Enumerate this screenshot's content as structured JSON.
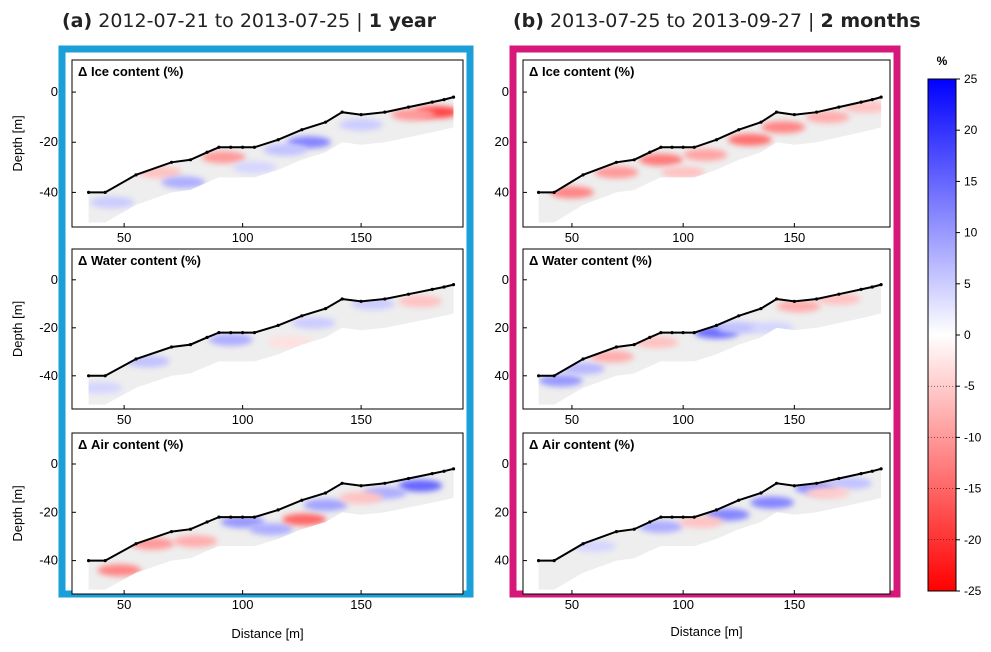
{
  "colors": {
    "frame_a": "#1a9fd9",
    "frame_b": "#d6187a",
    "surface": "#000000",
    "soil_background": "#eeeeee",
    "positive": "#0000ff",
    "negative": "#ff0000",
    "neutral": "#ffffff"
  },
  "chart_data": [
    {
      "type": "heatmap",
      "column": "a",
      "title_prefix": "(a)",
      "title_dates": "2012-07-21 to 2013-07-25 |",
      "title_duration": "1 year",
      "xlabel": "Distance [m]",
      "ylabel": "Depth [m]",
      "xlim": [
        28,
        193
      ],
      "ylim": [
        -53,
        12
      ],
      "x_ticks": [
        50,
        100,
        150
      ],
      "x_tick_labels": [
        "50",
        "100",
        "150"
      ],
      "y_ticks": [
        0,
        -20,
        -40
      ],
      "y_tick_labels": [
        "0",
        "-20",
        "-40"
      ],
      "surface_profile": {
        "x": [
          35,
          42,
          55,
          70,
          78,
          85,
          90,
          95,
          100,
          105,
          115,
          125,
          135,
          142,
          150,
          160,
          170,
          180,
          185,
          189
        ],
        "depth": [
          -40,
          -40,
          -33,
          -28,
          -27,
          -24,
          -22,
          -22,
          -22,
          -22,
          -19,
          -15,
          -12,
          -8,
          -9,
          -8,
          -6,
          -4,
          -3,
          -2
        ]
      },
      "subplots": [
        {
          "label": "Δ Ice content (%)",
          "anomalies": [
            {
              "x": 92,
              "depth": -26,
              "value": -10
            },
            {
              "x": 65,
              "depth": -32,
              "value": -6
            },
            {
              "x": 182,
              "depth": -8,
              "value": -18
            },
            {
              "x": 172,
              "depth": -9,
              "value": -10
            },
            {
              "x": 128,
              "depth": -20,
              "value": 12
            },
            {
              "x": 118,
              "depth": -23,
              "value": 6
            },
            {
              "x": 75,
              "depth": -36,
              "value": 8
            },
            {
              "x": 45,
              "depth": -44,
              "value": 5
            },
            {
              "x": 150,
              "depth": -13,
              "value": 5
            },
            {
              "x": 105,
              "depth": -30,
              "value": 4
            }
          ]
        },
        {
          "label": "Δ Water content (%)",
          "anomalies": [
            {
              "x": 60,
              "depth": -34,
              "value": 6
            },
            {
              "x": 95,
              "depth": -25,
              "value": 8
            },
            {
              "x": 130,
              "depth": -18,
              "value": 5
            },
            {
              "x": 120,
              "depth": -26,
              "value": -3
            },
            {
              "x": 155,
              "depth": -10,
              "value": 5
            },
            {
              "x": 175,
              "depth": -9,
              "value": -6
            },
            {
              "x": 40,
              "depth": -45,
              "value": 4
            }
          ]
        },
        {
          "label": "Δ Air content (%)",
          "anomalies": [
            {
              "x": 100,
              "depth": -24,
              "value": 10
            },
            {
              "x": 112,
              "depth": -27,
              "value": 8
            },
            {
              "x": 126,
              "depth": -23,
              "value": -15
            },
            {
              "x": 135,
              "depth": -17,
              "value": 9
            },
            {
              "x": 62,
              "depth": -33,
              "value": -10
            },
            {
              "x": 48,
              "depth": -44,
              "value": -12
            },
            {
              "x": 80,
              "depth": -32,
              "value": -8
            },
            {
              "x": 175,
              "depth": -9,
              "value": 15
            },
            {
              "x": 160,
              "depth": -12,
              "value": 8
            },
            {
              "x": 150,
              "depth": -14,
              "value": -6
            }
          ]
        }
      ]
    },
    {
      "type": "heatmap",
      "column": "b",
      "title_prefix": "(b)",
      "title_dates": "2013-07-25 to 2013-09-27 |",
      "title_duration": "2 months",
      "xlabel": "Distance [m]",
      "ylabel": "",
      "xlim": [
        28,
        193
      ],
      "ylim": [
        -53,
        12
      ],
      "x_ticks": [
        50,
        100,
        150
      ],
      "x_tick_labels": [
        "50",
        "100",
        "150"
      ],
      "y_ticks": [
        0,
        -20,
        -40
      ],
      "y_tick_labels": [
        "0",
        "20",
        "40"
      ],
      "surface_profile": {
        "x": [
          35,
          42,
          55,
          70,
          78,
          85,
          90,
          95,
          100,
          105,
          115,
          125,
          135,
          142,
          150,
          160,
          170,
          180,
          185,
          189
        ],
        "depth": [
          -40,
          -40,
          -33,
          -28,
          -27,
          -24,
          -22,
          -22,
          -22,
          -22,
          -19,
          -15,
          -12,
          -8,
          -9,
          -8,
          -6,
          -4,
          -3,
          -2
        ]
      },
      "subplots": [
        {
          "label": "Δ Ice content (%)",
          "anomalies": [
            {
              "x": 50,
              "depth": -40,
              "value": -12
            },
            {
              "x": 70,
              "depth": -32,
              "value": -10
            },
            {
              "x": 90,
              "depth": -27,
              "value": -13
            },
            {
              "x": 110,
              "depth": -25,
              "value": -9
            },
            {
              "x": 130,
              "depth": -19,
              "value": -14
            },
            {
              "x": 145,
              "depth": -14,
              "value": -12
            },
            {
              "x": 165,
              "depth": -10,
              "value": -8
            },
            {
              "x": 182,
              "depth": -6,
              "value": -6
            },
            {
              "x": 100,
              "depth": -32,
              "value": -6
            }
          ]
        },
        {
          "label": "Δ Water content (%)",
          "anomalies": [
            {
              "x": 45,
              "depth": -42,
              "value": 10
            },
            {
              "x": 55,
              "depth": -37,
              "value": 7
            },
            {
              "x": 68,
              "depth": -32,
              "value": -8
            },
            {
              "x": 88,
              "depth": -26,
              "value": -6
            },
            {
              "x": 115,
              "depth": -22,
              "value": 14
            },
            {
              "x": 125,
              "depth": -20,
              "value": 6
            },
            {
              "x": 152,
              "depth": -11,
              "value": -8
            },
            {
              "x": 170,
              "depth": -8,
              "value": -6
            },
            {
              "x": 140,
              "depth": -20,
              "value": 4
            }
          ]
        },
        {
          "label": "Δ Air content (%)",
          "anomalies": [
            {
              "x": 90,
              "depth": -26,
              "value": 8
            },
            {
              "x": 120,
              "depth": -21,
              "value": 12
            },
            {
              "x": 140,
              "depth": -16,
              "value": 12
            },
            {
              "x": 160,
              "depth": -10,
              "value": 11
            },
            {
              "x": 175,
              "depth": -8,
              "value": 6
            },
            {
              "x": 60,
              "depth": -34,
              "value": 4
            },
            {
              "x": 108,
              "depth": -24,
              "value": -6
            },
            {
              "x": 165,
              "depth": -12,
              "value": -5
            }
          ]
        }
      ]
    }
  ],
  "colorbar": {
    "unit": "%",
    "min": -25,
    "max": 25,
    "ticks": [
      25,
      20,
      15,
      10,
      5,
      0,
      -5,
      -10,
      -15,
      -20,
      -25
    ],
    "tick_labels": [
      "25",
      "20",
      "15",
      "10",
      "5",
      "0",
      "-5",
      "-10",
      "-15",
      "-20",
      "-25"
    ]
  }
}
